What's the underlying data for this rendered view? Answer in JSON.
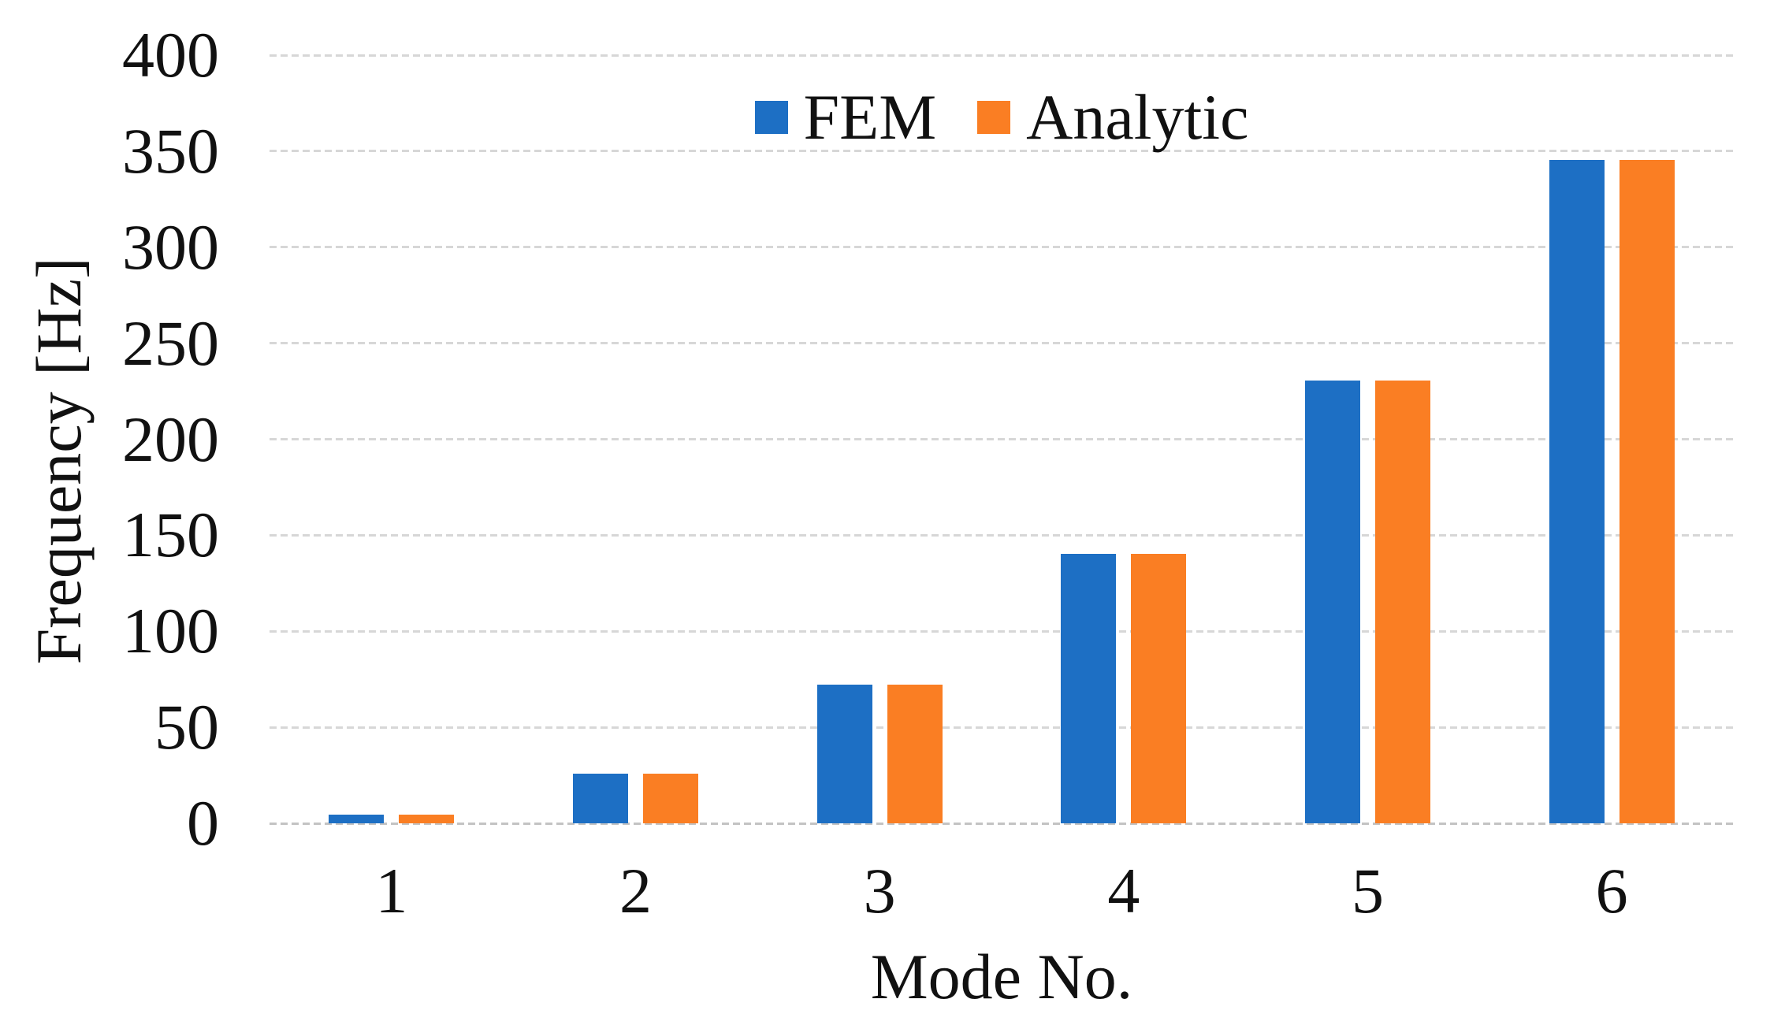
{
  "chart_data": {
    "type": "bar",
    "title": "",
    "categories": [
      "1",
      "2",
      "3",
      "4",
      "5",
      "6"
    ],
    "series": [
      {
        "name": "FEM",
        "color": "#1D6FC4",
        "values": [
          4.4,
          26,
          72,
          140.5,
          230.5,
          345.5
        ]
      },
      {
        "name": "Analytic",
        "color": "#FA7E23",
        "values": [
          4.4,
          26,
          72,
          140.5,
          230.5,
          345.5
        ]
      }
    ],
    "xlabel": "Mode No.",
    "ylabel": "Frequency [Hz]",
    "ylim": [
      0,
      400
    ],
    "yticks": [
      0,
      50,
      100,
      150,
      200,
      250,
      300,
      350,
      400
    ],
    "grid": "horizontal dashed gridlines at every 50 Hz",
    "legend_position": "top center, inside plot, horizontal"
  },
  "colors": {
    "background": "#FFFFFF",
    "text": "#111111",
    "gridline": "#D7D7D7",
    "axis_line": "#C3C3C3",
    "fem_blue": "#1D6FC4",
    "analytic_orange": "#FA7E23"
  }
}
